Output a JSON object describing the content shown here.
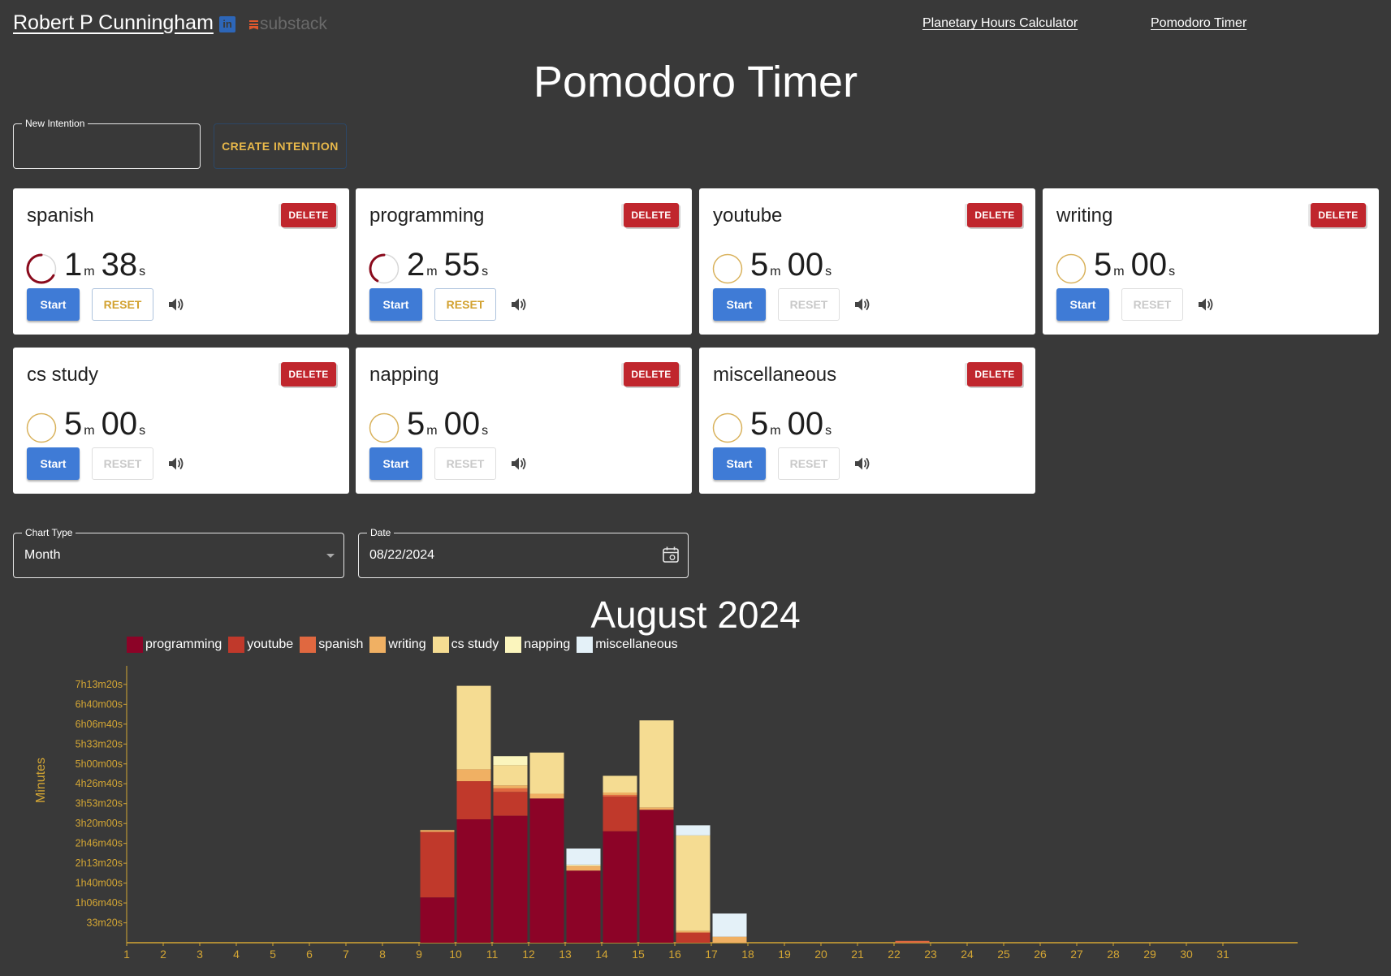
{
  "header": {
    "brand": "Robert P Cunningham",
    "linkedin_glyph": "in",
    "substack": "substack",
    "nav": [
      "Planetary Hours Calculator",
      "Pomodoro Timer"
    ]
  },
  "page_title": "Pomodoro Timer",
  "new_intention": {
    "legend": "New Intention",
    "value": "",
    "button": "CREATE INTENTION"
  },
  "labels": {
    "delete": "DELETE",
    "start": "Start",
    "reset": "RESET",
    "m": "m",
    "s": "s"
  },
  "timers": [
    {
      "name": "spanish",
      "minutes": "1",
      "seconds": "38",
      "progress": 0.67,
      "reset_active": true
    },
    {
      "name": "programming",
      "minutes": "2",
      "seconds": "55",
      "progress": 0.42,
      "reset_active": true
    },
    {
      "name": "youtube",
      "minutes": "5",
      "seconds": "00",
      "progress": 0,
      "reset_active": false
    },
    {
      "name": "writing",
      "minutes": "5",
      "seconds": "00",
      "progress": 0,
      "reset_active": false
    },
    {
      "name": "cs study",
      "minutes": "5",
      "seconds": "00",
      "progress": 0,
      "reset_active": false
    },
    {
      "name": "napping",
      "minutes": "5",
      "seconds": "00",
      "progress": 0,
      "reset_active": false
    },
    {
      "name": "miscellaneous",
      "minutes": "5",
      "seconds": "00",
      "progress": 0,
      "reset_active": false
    }
  ],
  "chart_type": {
    "legend": "Chart Type",
    "value": "Month"
  },
  "date_field": {
    "legend": "Date",
    "value": "08/22/2024"
  },
  "colors": {
    "background": "#393939",
    "axis": "#d4a634",
    "start_button": "#3f7bd6",
    "delete_button": "#c0262d",
    "ring_progress": "#8a0a1c",
    "ring_idle": "#d9b25c"
  },
  "chart_data": {
    "type": "bar",
    "stacked": true,
    "title": "August 2024",
    "ylabel": "Minutes",
    "xlabel": "",
    "ylim": [
      0,
      440
    ],
    "y_ticks": [
      {
        "value": 33.33,
        "label": "33m20s"
      },
      {
        "value": 66.67,
        "label": "1h06m40s"
      },
      {
        "value": 100,
        "label": "1h40m00s"
      },
      {
        "value": 133.33,
        "label": "2h13m20s"
      },
      {
        "value": 166.67,
        "label": "2h46m40s"
      },
      {
        "value": 200,
        "label": "3h20m00s"
      },
      {
        "value": 233.33,
        "label": "3h53m20s"
      },
      {
        "value": 266.67,
        "label": "4h26m40s"
      },
      {
        "value": 300,
        "label": "5h00m00s"
      },
      {
        "value": 333.33,
        "label": "5h33m20s"
      },
      {
        "value": 366.67,
        "label": "6h06m40s"
      },
      {
        "value": 400,
        "label": "6h40m00s"
      },
      {
        "value": 433.33,
        "label": "7h13m20s"
      }
    ],
    "categories": [
      "1",
      "2",
      "3",
      "4",
      "5",
      "6",
      "7",
      "8",
      "9",
      "10",
      "11",
      "12",
      "13",
      "14",
      "15",
      "16",
      "17",
      "18",
      "19",
      "20",
      "21",
      "22",
      "23",
      "24",
      "25",
      "26",
      "27",
      "28",
      "29",
      "30",
      "31"
    ],
    "series": [
      {
        "name": "programming",
        "color": "#8c0327",
        "values": [
          0,
          0,
          0,
          0,
          0,
          0,
          0,
          0,
          76,
          207,
          213,
          242,
          121,
          187,
          223,
          0,
          0,
          0,
          0,
          0,
          0,
          0,
          0,
          0,
          0,
          0,
          0,
          0,
          0,
          0,
          0
        ]
      },
      {
        "name": "youtube",
        "color": "#c0392b",
        "values": [
          0,
          0,
          0,
          0,
          0,
          0,
          0,
          0,
          110,
          64,
          40,
          0,
          0,
          58,
          0,
          17,
          0,
          0,
          0,
          0,
          0,
          0,
          0,
          0,
          0,
          0,
          0,
          0,
          0,
          0,
          0
        ]
      },
      {
        "name": "spanish",
        "color": "#e06840",
        "values": [
          0,
          0,
          0,
          0,
          0,
          0,
          0,
          0,
          0,
          0,
          6,
          0,
          0,
          3,
          0,
          0,
          0,
          0,
          0,
          0,
          0,
          3,
          0,
          0,
          0,
          0,
          0,
          0,
          0,
          0,
          0
        ]
      },
      {
        "name": "writing",
        "color": "#f0b063",
        "values": [
          0,
          0,
          0,
          0,
          0,
          0,
          0,
          0,
          3,
          20,
          5,
          8,
          8,
          4,
          4,
          3,
          10,
          0,
          0,
          0,
          0,
          0,
          0,
          0,
          0,
          0,
          0,
          0,
          0,
          0,
          0
        ]
      },
      {
        "name": "cs study",
        "color": "#f5dc92",
        "values": [
          0,
          0,
          0,
          0,
          0,
          0,
          0,
          0,
          0,
          140,
          34,
          69,
          0,
          28,
          146,
          160,
          0,
          0,
          0,
          0,
          0,
          0,
          0,
          0,
          0,
          0,
          0,
          0,
          0,
          0,
          0
        ]
      },
      {
        "name": "napping",
        "color": "#fbf5bd",
        "values": [
          0,
          0,
          0,
          0,
          0,
          0,
          0,
          0,
          0,
          0,
          15,
          0,
          2,
          0,
          0,
          0,
          0,
          0,
          0,
          0,
          0,
          0,
          0,
          0,
          0,
          0,
          0,
          0,
          0,
          0,
          0
        ]
      },
      {
        "name": "miscellaneous",
        "color": "#e4f1f8",
        "values": [
          0,
          0,
          0,
          0,
          0,
          0,
          0,
          0,
          0,
          0,
          0,
          0,
          27,
          0,
          0,
          17,
          39,
          0,
          0,
          0,
          0,
          0,
          0,
          0,
          0,
          0,
          0,
          0,
          0,
          0,
          0
        ]
      }
    ],
    "grid": false,
    "legend_position": "top-left"
  }
}
